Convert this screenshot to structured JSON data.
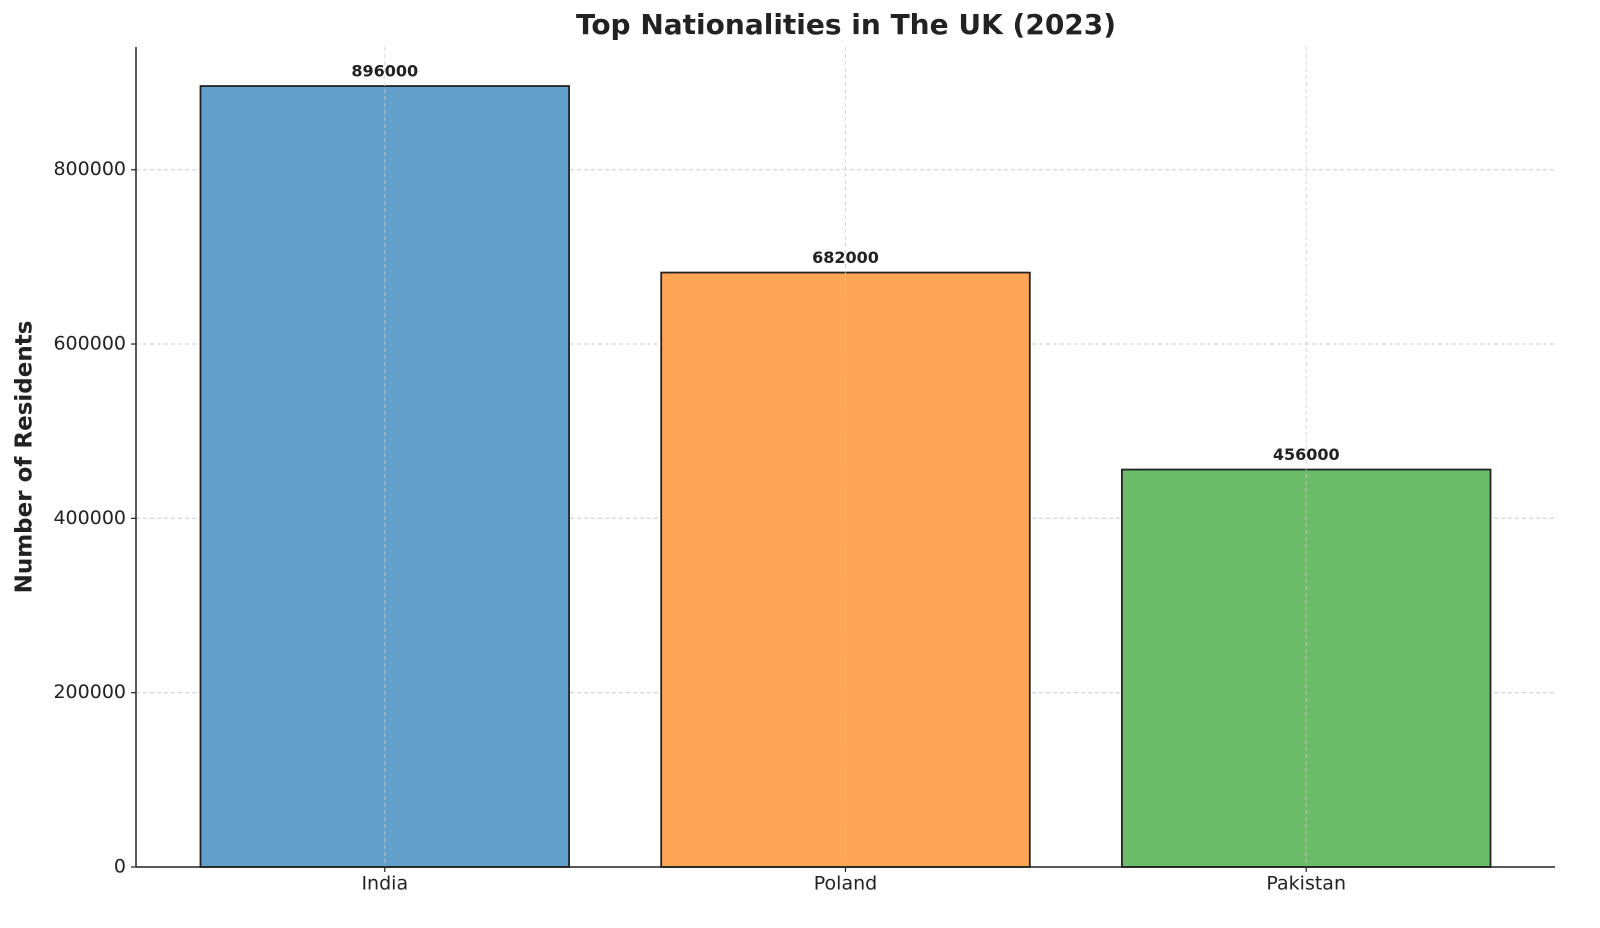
{
  "chart_data": {
    "type": "bar",
    "title": "Top Nationalities in The UK (2023)",
    "y_label": "Number of Residents",
    "categories": [
      "India",
      "Poland",
      "Pakistan"
    ],
    "values": [
      896000,
      682000,
      456000
    ],
    "colors": [
      "#629fca",
      "#ffa556",
      "#6bbd6a"
    ],
    "ylim": [
      0,
      940800
    ],
    "yticks": [
      0,
      200000,
      400000,
      600000,
      800000
    ],
    "grid": true
  }
}
